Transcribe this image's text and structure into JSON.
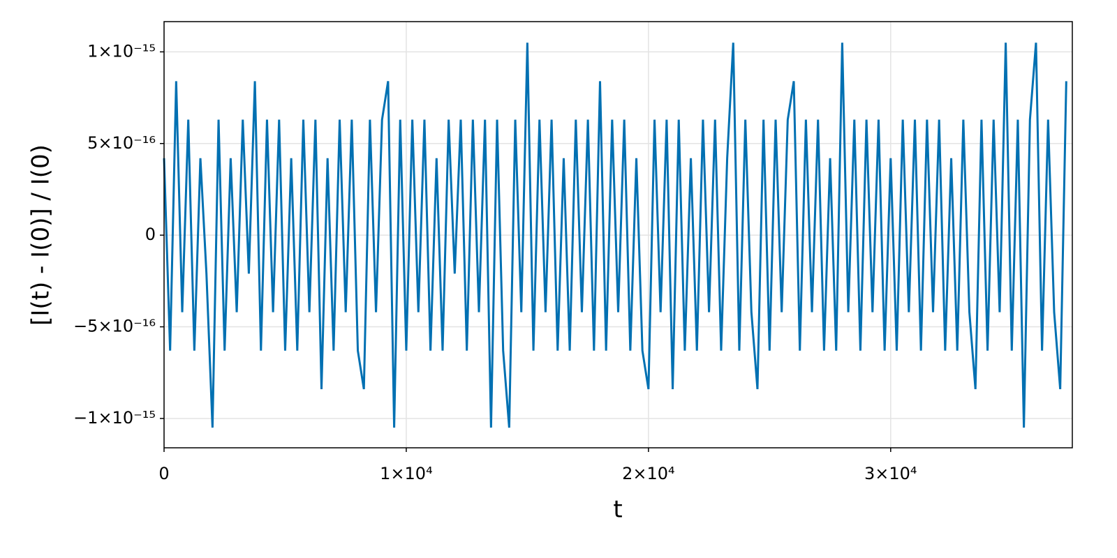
{
  "chart_data": {
    "type": "line",
    "x_label": "t",
    "y_label": "[I(t) - I(0)] / I(0)",
    "x": [
      0,
      250,
      500,
      750,
      1000,
      1250,
      1500,
      1750,
      2000,
      2250,
      2500,
      2750,
      3000,
      3250,
      3500,
      3750,
      4000,
      4250,
      4500,
      4750,
      5000,
      5250,
      5500,
      5750,
      6000,
      6250,
      6500,
      6750,
      7000,
      7250,
      7500,
      7750,
      8000,
      8250,
      8500,
      8750,
      9000,
      9250,
      9500,
      9750,
      10000,
      10250,
      10500,
      10750,
      11000,
      11250,
      11500,
      11750,
      12000,
      12250,
      12500,
      12750,
      13000,
      13250,
      13500,
      13750,
      14000,
      14250,
      14500,
      14750,
      15000,
      15250,
      15500,
      15750,
      16000,
      16250,
      16500,
      16750,
      17000,
      17250,
      17500,
      17750,
      18000,
      18250,
      18500,
      18750,
      19000,
      19250,
      19500,
      19750,
      20000,
      20250,
      20500,
      20750,
      21000,
      21250,
      21500,
      21750,
      22000,
      22250,
      22500,
      22750,
      23000,
      23250,
      23500,
      23750,
      24000,
      24250,
      24500,
      24750,
      25000,
      25250,
      25500,
      25750,
      26000,
      26250,
      26500,
      26750,
      27000,
      27250,
      27500,
      27750,
      28000,
      28250,
      28500,
      28750,
      29000,
      29250,
      29500,
      29750,
      30000,
      30250,
      30500,
      30750,
      31000,
      31250,
      31500,
      31750,
      32000,
      32250,
      32500,
      32750,
      33000,
      33250,
      33500,
      33750,
      34000,
      34250,
      34500,
      34750,
      35000,
      35250,
      35500,
      35750,
      36000,
      36250,
      36500,
      36750,
      37000,
      37250
    ],
    "values": [
      4.2e-16,
      -6.3e-16,
      8.4e-16,
      -4.2e-16,
      6.3e-16,
      -6.3e-16,
      4.2e-16,
      -2.1e-16,
      -1.05e-15,
      6.3e-16,
      -6.3e-16,
      4.2e-16,
      -4.2e-16,
      6.3e-16,
      -2.1e-16,
      8.4e-16,
      -6.3e-16,
      6.3e-16,
      -4.2e-16,
      6.3e-16,
      -6.3e-16,
      4.2e-16,
      -6.3e-16,
      6.3e-16,
      -4.2e-16,
      6.3e-16,
      -8.4e-16,
      4.2e-16,
      -6.3e-16,
      6.3e-16,
      -4.2e-16,
      6.3e-16,
      -6.3e-16,
      -8.4e-16,
      6.3e-16,
      -4.2e-16,
      6.3e-16,
      8.4e-16,
      -1.05e-15,
      6.3e-16,
      -6.3e-16,
      6.3e-16,
      -4.2e-16,
      6.3e-16,
      -6.3e-16,
      4.2e-16,
      -6.3e-16,
      6.3e-16,
      -2.1e-16,
      6.3e-16,
      -6.3e-16,
      6.3e-16,
      -4.2e-16,
      6.3e-16,
      -1.05e-15,
      6.3e-16,
      -6.3e-16,
      -1.05e-15,
      6.3e-16,
      -4.2e-16,
      1.05e-15,
      -6.3e-16,
      6.3e-16,
      -4.2e-16,
      6.3e-16,
      -6.3e-16,
      4.2e-16,
      -6.3e-16,
      6.3e-16,
      -4.2e-16,
      6.3e-16,
      -6.3e-16,
      8.4e-16,
      -6.3e-16,
      6.3e-16,
      -4.2e-16,
      6.3e-16,
      -6.3e-16,
      4.2e-16,
      -6.3e-16,
      -8.4e-16,
      6.3e-16,
      -4.2e-16,
      6.3e-16,
      -8.4e-16,
      6.3e-16,
      -6.3e-16,
      4.2e-16,
      -6.3e-16,
      6.3e-16,
      -4.2e-16,
      6.3e-16,
      -6.3e-16,
      4.2e-16,
      1.05e-15,
      -6.3e-16,
      6.3e-16,
      -4.2e-16,
      -8.4e-16,
      6.3e-16,
      -6.3e-16,
      6.3e-16,
      -4.2e-16,
      6.3e-16,
      8.4e-16,
      -6.3e-16,
      6.3e-16,
      -4.2e-16,
      6.3e-16,
      -6.3e-16,
      4.2e-16,
      -6.3e-16,
      1.05e-15,
      -4.2e-16,
      6.3e-16,
      -6.3e-16,
      6.3e-16,
      -4.2e-16,
      6.3e-16,
      -6.3e-16,
      4.2e-16,
      -6.3e-16,
      6.3e-16,
      -4.2e-16,
      6.3e-16,
      -6.3e-16,
      6.3e-16,
      -4.2e-16,
      6.3e-16,
      -6.3e-16,
      4.2e-16,
      -6.3e-16,
      6.3e-16,
      -4.2e-16,
      -8.4e-16,
      6.3e-16,
      -6.3e-16,
      6.3e-16,
      -4.2e-16,
      1.05e-15,
      -6.3e-16,
      6.3e-16,
      -1.05e-15,
      6.3e-16,
      1.05e-15,
      -6.3e-16,
      6.3e-16,
      -4.2e-16,
      -8.4e-16,
      8.4e-16
    ],
    "color": "#0070b2",
    "xlim": [
      0,
      37500
    ],
    "xticks": [
      0,
      {
        "value": 10000,
        "label": "1×10⁴"
      },
      {
        "value": 20000,
        "label": "2×10⁴"
      },
      {
        "value": 30000,
        "label": "3×10⁴"
      }
    ],
    "ylim": [
      -1.16e-15,
      1.165e-15
    ],
    "yticks": [
      {
        "value": -1e-15,
        "label": "−1×10⁻¹⁵"
      },
      {
        "value": -5e-16,
        "label": "−5×10⁻¹⁶"
      },
      0,
      {
        "value": 5e-16,
        "label": "5×10⁻¹⁶"
      },
      {
        "value": 1e-15,
        "label": "1×10⁻¹⁵"
      }
    ],
    "grid": true
  }
}
